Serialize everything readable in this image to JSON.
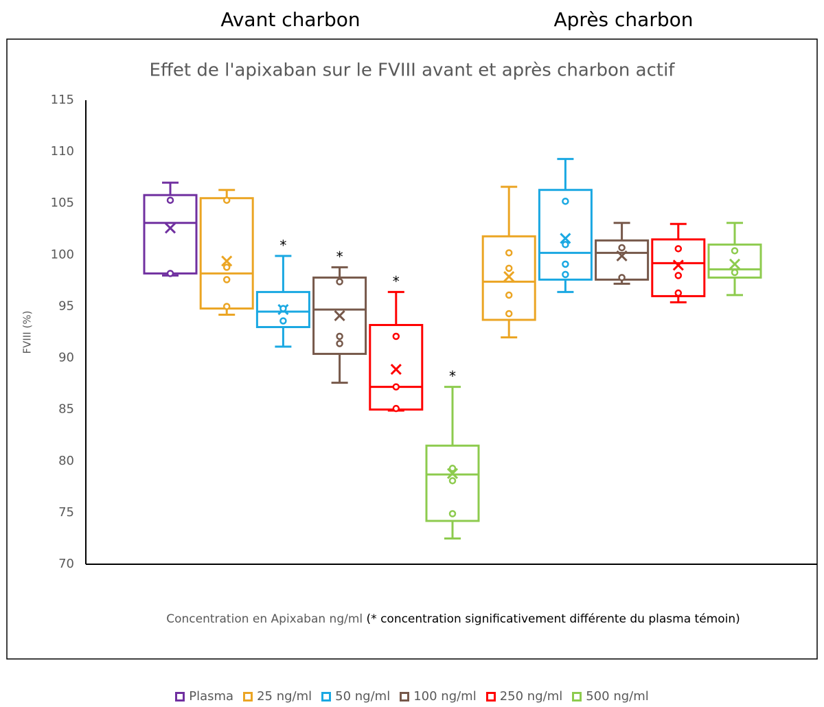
{
  "chart_data": {
    "type": "box",
    "title": "Effet de l'apixaban sur le FVIII avant et après charbon actif",
    "ylabel": "FVIII (%)",
    "xlabel": "Concentration en Apixaban ng/ml",
    "note": "(* concentration significativement différente du plasma témoin)",
    "categories": [
      "Avant charbon",
      "Après charbon"
    ],
    "ylim": [
      70,
      115
    ],
    "yticks": [
      70,
      75,
      80,
      85,
      90,
      95,
      100,
      105,
      110,
      115
    ],
    "series": [
      {
        "name": "Plasma",
        "color": "#7030a0",
        "values": [
          {
            "min": 98.0,
            "q1": 98.2,
            "median": 103.1,
            "q3": 105.8,
            "max": 107.0,
            "mean": 102.6,
            "points": [
              105.3,
              98.2
            ]
          },
          null
        ]
      },
      {
        "name": "25 ng/ml",
        "color": "#eba524",
        "values": [
          {
            "min": 94.2,
            "q1": 94.8,
            "median": 98.2,
            "q3": 105.5,
            "max": 106.3,
            "mean": 99.4,
            "points": [
              105.3,
              98.8,
              97.6,
              95.0
            ]
          },
          {
            "min": 92.0,
            "q1": 93.7,
            "median": 97.4,
            "q3": 101.8,
            "max": 106.6,
            "mean": 97.9,
            "points": [
              100.2,
              98.7,
              96.1,
              94.3
            ]
          }
        ]
      },
      {
        "name": "50 ng/ml",
        "color": "#1aa8e2",
        "values": [
          {
            "min": 91.1,
            "q1": 93.0,
            "median": 94.5,
            "q3": 96.4,
            "max": 99.9,
            "mean": 94.7,
            "points": [
              94.8,
              93.6
            ],
            "label": "*"
          },
          {
            "min": 96.4,
            "q1": 97.6,
            "median": 100.2,
            "q3": 106.3,
            "max": 109.3,
            "mean": 101.6,
            "points": [
              105.2,
              101.0,
              99.1,
              98.1
            ]
          }
        ]
      },
      {
        "name": "100 ng/ml",
        "color": "#76584a",
        "values": [
          {
            "min": 87.6,
            "q1": 90.4,
            "median": 94.7,
            "q3": 97.8,
            "max": 98.8,
            "mean": 94.1,
            "points": [
              97.4,
              92.1,
              91.4
            ],
            "label": "*"
          },
          {
            "min": 97.2,
            "q1": 97.6,
            "median": 100.2,
            "q3": 101.4,
            "max": 103.1,
            "mean": 99.9,
            "points": [
              100.7,
              97.8
            ]
          }
        ]
      },
      {
        "name": "250 ng/ml",
        "color": "#ff0000",
        "values": [
          {
            "min": 84.9,
            "q1": 85.0,
            "median": 87.2,
            "q3": 93.2,
            "max": 96.4,
            "mean": 88.9,
            "points": [
              92.1,
              87.2,
              85.1
            ],
            "label": "*"
          },
          {
            "min": 95.4,
            "q1": 96.0,
            "median": 99.2,
            "q3": 101.5,
            "max": 103.0,
            "mean": 99.0,
            "points": [
              100.6,
              98.0,
              96.3
            ]
          }
        ]
      },
      {
        "name": "500 ng/ml",
        "color": "#8dcb4e",
        "values": [
          {
            "min": 72.5,
            "q1": 74.2,
            "median": 78.7,
            "q3": 81.5,
            "max": 87.2,
            "mean": 78.8,
            "points": [
              79.3,
              78.1,
              74.9
            ],
            "label": "*"
          },
          {
            "min": 96.1,
            "q1": 97.8,
            "median": 98.6,
            "q3": 101.0,
            "max": 103.1,
            "mean": 99.1,
            "points": [
              100.4,
              98.3
            ]
          }
        ]
      }
    ]
  }
}
